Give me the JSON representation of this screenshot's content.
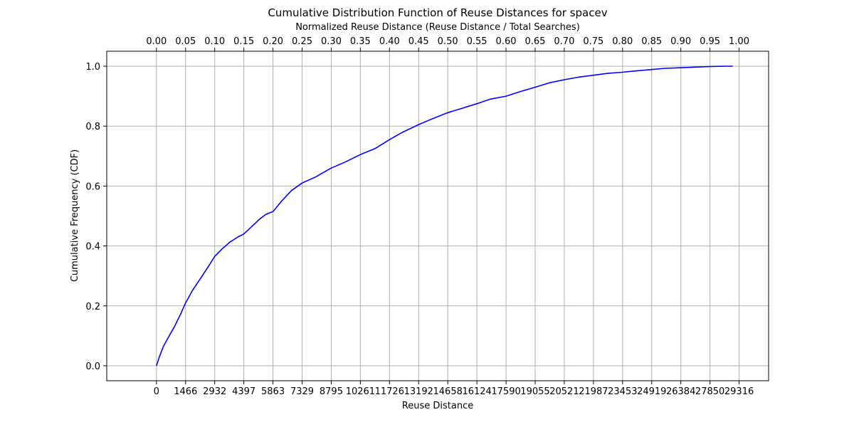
{
  "chart_data": {
    "type": "line",
    "title": "Cumulative Distribution Function of Reuse Distances for spacev",
    "xlabel": "Reuse Distance",
    "ylabel": "Cumulative Frequency (CDF)",
    "x2label": "Normalized Reuse Distance (Reuse Distance / Total Searches)",
    "xlim": [
      -2500,
      30800
    ],
    "ylim": [
      -0.05,
      1.05
    ],
    "x2lim": [
      -0.0853,
      1.0507
    ],
    "grid": true,
    "line_color": "#0000ff",
    "x_ticks": [
      0,
      1466,
      2932,
      4397,
      5863,
      7329,
      8795,
      10261,
      11726,
      13192,
      14658,
      16124,
      17590,
      19055,
      20521,
      21987,
      23453,
      24919,
      26384,
      27850,
      29316
    ],
    "x_tick_labels": [
      "0",
      "1466",
      "2932",
      "4397",
      "5863",
      "7329",
      "8795",
      "10261",
      "11726",
      "13192",
      "14658",
      "16124",
      "17590",
      "19055",
      "20521",
      "21987",
      "23453",
      "24919",
      "26384",
      "27850",
      "29316"
    ],
    "x2_ticks": [
      0.0,
      0.05,
      0.1,
      0.15,
      0.2,
      0.25,
      0.3,
      0.35,
      0.4,
      0.45,
      0.5,
      0.55,
      0.6,
      0.65,
      0.7,
      0.75,
      0.8,
      0.85,
      0.9,
      0.95,
      1.0
    ],
    "x2_tick_labels": [
      "0.00",
      "0.05",
      "0.10",
      "0.15",
      "0.20",
      "0.25",
      "0.30",
      "0.35",
      "0.40",
      "0.45",
      "0.50",
      "0.55",
      "0.60",
      "0.65",
      "0.70",
      "0.75",
      "0.80",
      "0.85",
      "0.90",
      "0.95",
      "1.00"
    ],
    "y_ticks": [
      0.0,
      0.2,
      0.4,
      0.6,
      0.8,
      1.0
    ],
    "y_tick_labels": [
      "0.0",
      "0.2",
      "0.4",
      "0.6",
      "0.8",
      "1.0"
    ],
    "series": [
      {
        "x": [
          0,
          150,
          350,
          600,
          900,
          1200,
          1466,
          1800,
          2200,
          2600,
          2932,
          3300,
          3700,
          4100,
          4397,
          4800,
          5200,
          5500,
          5863,
          6300,
          6800,
          7329,
          8000,
          8795,
          9500,
          10261,
          11000,
          11726,
          12400,
          13192,
          13900,
          14658,
          15400,
          16124,
          16800,
          17590,
          18300,
          19055,
          19800,
          20521,
          21200,
          21987,
          22700,
          23453,
          24200,
          24919,
          25600,
          26384,
          27100,
          27850,
          28600,
          29000
        ],
        "y": [
          0.0,
          0.03,
          0.065,
          0.095,
          0.13,
          0.17,
          0.21,
          0.25,
          0.29,
          0.33,
          0.365,
          0.39,
          0.413,
          0.43,
          0.44,
          0.465,
          0.49,
          0.505,
          0.515,
          0.55,
          0.585,
          0.61,
          0.63,
          0.66,
          0.68,
          0.705,
          0.725,
          0.755,
          0.78,
          0.805,
          0.825,
          0.845,
          0.86,
          0.875,
          0.89,
          0.9,
          0.915,
          0.93,
          0.945,
          0.955,
          0.963,
          0.97,
          0.976,
          0.98,
          0.985,
          0.989,
          0.993,
          0.995,
          0.997,
          0.999,
          1.0,
          1.0
        ]
      }
    ]
  }
}
